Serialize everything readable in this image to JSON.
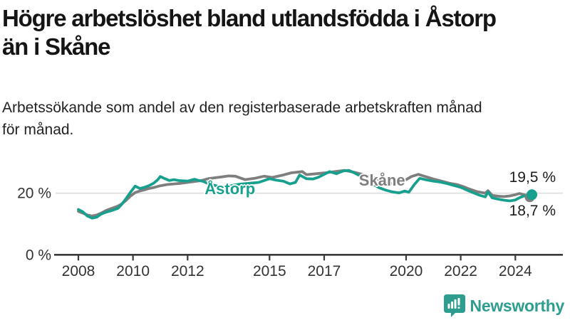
{
  "header": {
    "title_lines": [
      "Högre arbetslöshet bland utlandsfödda i Åstorp",
      "än i Skåne"
    ],
    "subtitle_lines": [
      "Arbetssökande som andel av den registerbaserade arbetskraften månad",
      "för månad."
    ]
  },
  "chart_data": {
    "type": "line",
    "title": "Högre arbetslöshet bland utlandsfödda i Åstorp än i Skåne",
    "subtitle": "Arbetssökande som andel av den registerbaserade arbetskraften månad för månad.",
    "xlabel": "",
    "ylabel": "",
    "x_range": [
      2007.1,
      2025.7
    ],
    "y_range": [
      0,
      33
    ],
    "grid": "horizontal line at 20 % only",
    "legend": "inline labels on lines",
    "x_axis": {
      "ticks": [
        2008,
        2010,
        2012,
        2015,
        2017,
        2020,
        2022,
        2024
      ]
    },
    "y_axis": {
      "ticks": [
        {
          "value": 0,
          "label": "0 %"
        },
        {
          "value": 20,
          "label": "20 %"
        }
      ]
    },
    "series": [
      {
        "name": "Åstorp",
        "color": "#18a08e",
        "end_label": "19,5 %",
        "end_value": 19.5,
        "label_pos": {
          "x": 2013.55,
          "y": 21.3
        },
        "points": [
          [
            2008.0,
            14.7
          ],
          [
            2008.17,
            13.9
          ],
          [
            2008.33,
            12.6
          ],
          [
            2008.5,
            11.9
          ],
          [
            2008.67,
            12.2
          ],
          [
            2008.83,
            13.2
          ],
          [
            2009.0,
            13.8
          ],
          [
            2009.2,
            14.3
          ],
          [
            2009.45,
            15.1
          ],
          [
            2009.6,
            16.5
          ],
          [
            2009.75,
            18.3
          ],
          [
            2009.9,
            20.2
          ],
          [
            2010.08,
            22.3
          ],
          [
            2010.25,
            21.5
          ],
          [
            2010.42,
            21.9
          ],
          [
            2010.58,
            22.4
          ],
          [
            2010.75,
            23.2
          ],
          [
            2010.9,
            24.3
          ],
          [
            2011.0,
            25.4
          ],
          [
            2011.17,
            24.7
          ],
          [
            2011.33,
            24.1
          ],
          [
            2011.5,
            24.4
          ],
          [
            2011.67,
            24.1
          ],
          [
            2011.83,
            24.0
          ],
          [
            2012.0,
            23.9
          ],
          [
            2012.25,
            24.5
          ],
          [
            2012.42,
            24.1
          ],
          [
            2012.58,
            23.8
          ],
          [
            2012.75,
            23.1
          ],
          [
            2013.0,
            22.5
          ],
          [
            2013.25,
            22.0
          ],
          [
            2013.5,
            22.2
          ],
          [
            2013.75,
            22.7
          ],
          [
            2014.0,
            23.0
          ],
          [
            2014.25,
            23.2
          ],
          [
            2014.6,
            23.5
          ],
          [
            2014.8,
            24.1
          ],
          [
            2015.0,
            24.7
          ],
          [
            2015.25,
            24.2
          ],
          [
            2015.5,
            23.9
          ],
          [
            2015.75,
            23.0
          ],
          [
            2015.95,
            23.5
          ],
          [
            2016.1,
            25.9
          ],
          [
            2016.35,
            24.7
          ],
          [
            2016.6,
            24.6
          ],
          [
            2016.8,
            25.2
          ],
          [
            2017.0,
            26.1
          ],
          [
            2017.2,
            27.0
          ],
          [
            2017.45,
            26.3
          ],
          [
            2017.7,
            27.2
          ],
          [
            2017.9,
            27.4
          ],
          [
            2018.1,
            26.6
          ],
          [
            2018.4,
            25.2
          ],
          [
            2018.7,
            23.4
          ],
          [
            2019.0,
            21.8
          ],
          [
            2019.25,
            21.0
          ],
          [
            2019.5,
            20.4
          ],
          [
            2019.75,
            20.1
          ],
          [
            2019.95,
            20.7
          ],
          [
            2020.1,
            20.3
          ],
          [
            2020.3,
            22.8
          ],
          [
            2020.5,
            24.8
          ],
          [
            2020.75,
            24.3
          ],
          [
            2021.0,
            23.9
          ],
          [
            2021.25,
            23.6
          ],
          [
            2021.5,
            23.1
          ],
          [
            2021.75,
            22.5
          ],
          [
            2022.0,
            21.9
          ],
          [
            2022.25,
            20.9
          ],
          [
            2022.5,
            20.0
          ],
          [
            2022.7,
            19.3
          ],
          [
            2022.9,
            18.8
          ],
          [
            2023.0,
            20.4
          ],
          [
            2023.15,
            18.5
          ],
          [
            2023.35,
            18.1
          ],
          [
            2023.6,
            17.7
          ],
          [
            2023.8,
            17.5
          ],
          [
            2024.0,
            17.8
          ],
          [
            2024.17,
            18.6
          ],
          [
            2024.33,
            19.1
          ],
          [
            2024.45,
            18.9
          ],
          [
            2024.58,
            19.5
          ]
        ]
      },
      {
        "name": "Skåne",
        "color": "#7e7e7e",
        "end_label": "18,7 %",
        "end_value": 18.7,
        "label_pos": {
          "x": 2019.12,
          "y": 24.1
        },
        "points": [
          [
            2008.0,
            14.1
          ],
          [
            2008.17,
            13.5
          ],
          [
            2008.33,
            12.9
          ],
          [
            2008.5,
            12.6
          ],
          [
            2008.67,
            12.9
          ],
          [
            2008.83,
            13.5
          ],
          [
            2009.0,
            14.3
          ],
          [
            2009.2,
            15.0
          ],
          [
            2009.45,
            15.8
          ],
          [
            2009.6,
            16.6
          ],
          [
            2009.75,
            17.7
          ],
          [
            2009.9,
            19.0
          ],
          [
            2010.08,
            20.2
          ],
          [
            2010.25,
            20.7
          ],
          [
            2010.42,
            21.1
          ],
          [
            2010.58,
            21.5
          ],
          [
            2010.75,
            21.8
          ],
          [
            2011.0,
            22.4
          ],
          [
            2011.25,
            22.8
          ],
          [
            2011.5,
            23.0
          ],
          [
            2011.75,
            23.2
          ],
          [
            2012.0,
            23.5
          ],
          [
            2012.25,
            23.8
          ],
          [
            2012.5,
            24.1
          ],
          [
            2012.75,
            24.7
          ],
          [
            2013.0,
            25.0
          ],
          [
            2013.25,
            25.3
          ],
          [
            2013.5,
            25.6
          ],
          [
            2013.75,
            25.5
          ],
          [
            2014.1,
            24.4
          ],
          [
            2014.45,
            24.8
          ],
          [
            2014.8,
            25.5
          ],
          [
            2015.1,
            25.1
          ],
          [
            2015.5,
            25.9
          ],
          [
            2015.8,
            26.6
          ],
          [
            2016.2,
            27.0
          ],
          [
            2016.35,
            26.0
          ],
          [
            2016.7,
            26.3
          ],
          [
            2017.05,
            26.6
          ],
          [
            2017.4,
            27.0
          ],
          [
            2017.75,
            27.4
          ],
          [
            2018.1,
            26.8
          ],
          [
            2018.4,
            26.1
          ],
          [
            2018.7,
            25.3
          ],
          [
            2019.0,
            24.5
          ],
          [
            2019.3,
            23.7
          ],
          [
            2019.55,
            22.9
          ],
          [
            2019.8,
            23.6
          ],
          [
            2020.0,
            24.4
          ],
          [
            2020.2,
            25.4
          ],
          [
            2020.45,
            26.1
          ],
          [
            2020.7,
            25.4
          ],
          [
            2021.0,
            24.6
          ],
          [
            2021.3,
            23.9
          ],
          [
            2021.6,
            23.2
          ],
          [
            2021.9,
            22.7
          ],
          [
            2022.1,
            22.1
          ],
          [
            2022.3,
            21.4
          ],
          [
            2022.6,
            20.5
          ],
          [
            2022.9,
            20.0
          ],
          [
            2023.0,
            20.8
          ],
          [
            2023.15,
            19.3
          ],
          [
            2023.4,
            19.0
          ],
          [
            2023.6,
            18.9
          ],
          [
            2023.8,
            19.1
          ],
          [
            2024.0,
            19.5
          ],
          [
            2024.15,
            19.9
          ],
          [
            2024.35,
            19.4
          ],
          [
            2024.5,
            18.9
          ],
          [
            2024.58,
            18.7
          ]
        ]
      }
    ]
  },
  "branding": {
    "logo_text": "Newsworthy",
    "logo_icon": "bar-chart-speech-bubble-icon"
  },
  "colors": {
    "accent_teal": "#18a08e",
    "series_gray": "#7e7e7e",
    "gridline": "#dddddd",
    "axis": "#3a3a3a",
    "tick_text": "#333333",
    "title_text": "#151515",
    "logo_teal": "#2d9d8f",
    "background": "#ffffff"
  }
}
